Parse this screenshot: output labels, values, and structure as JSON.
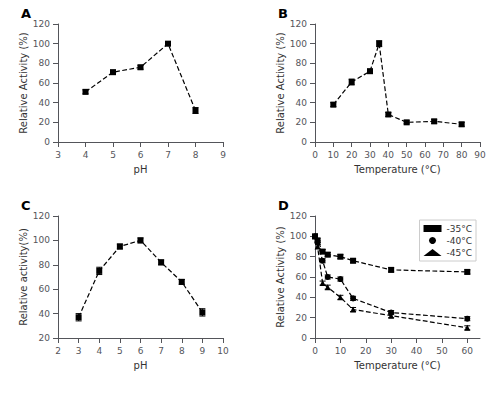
{
  "chart_data": [
    {
      "type": "line",
      "title": "A",
      "xlabel": "pH",
      "ylabel": "Relative Activity (%)",
      "x": [
        4,
        5,
        6,
        7,
        8
      ],
      "series": [
        {
          "color": "black",
          "marker": "square",
          "line_style": "dashed",
          "values": [
            51,
            71,
            76,
            100,
            32
          ],
          "yerr": [
            2,
            2,
            2,
            2,
            3
          ]
        }
      ],
      "xlim": [
        3,
        9
      ],
      "ylim": [
        0,
        120
      ],
      "xticks": [
        3,
        4,
        5,
        6,
        7,
        8,
        9
      ],
      "yticks": [
        0,
        20,
        40,
        60,
        80,
        100,
        120
      ],
      "grid": false
    },
    {
      "type": "line",
      "title": "B",
      "xlabel": "Temperature (°C)",
      "ylabel": "Relative Activity (%)",
      "x": [
        10,
        20,
        30,
        35,
        40,
        50,
        65,
        80
      ],
      "series": [
        {
          "color": "black",
          "marker": "square",
          "line_style": "dashed",
          "values": [
            38,
            61,
            72,
            100,
            28,
            20,
            21,
            18
          ],
          "yerr": [
            2,
            3,
            2,
            3,
            2,
            1.5,
            2,
            2
          ]
        }
      ],
      "xlim": [
        0,
        90
      ],
      "ylim": [
        0,
        120
      ],
      "xticks": [
        0,
        10,
        20,
        30,
        40,
        50,
        60,
        70,
        80,
        90
      ],
      "yticks": [
        0,
        20,
        40,
        60,
        80,
        100,
        120
      ],
      "grid": false
    },
    {
      "type": "line",
      "title": "C",
      "xlabel": "pH",
      "ylabel": "Relative activity(%)",
      "x": [
        3,
        4,
        5,
        6,
        7,
        8,
        9
      ],
      "series": [
        {
          "color": "black",
          "marker": "square",
          "line_style": "dashed",
          "values": [
            37,
            75,
            95,
            100,
            82,
            66,
            41
          ],
          "yerr": [
            3,
            3,
            2,
            2,
            2,
            2,
            3
          ]
        }
      ],
      "xlim": [
        2,
        10
      ],
      "ylim": [
        20,
        120
      ],
      "xticks": [
        2,
        3,
        4,
        5,
        6,
        7,
        8,
        9,
        10
      ],
      "yticks": [
        20,
        40,
        60,
        80,
        100,
        120
      ],
      "grid": false
    },
    {
      "type": "line",
      "title": "D",
      "xlabel": "Temperature (°C)",
      "ylabel": "Relative Activity (%)",
      "x": [
        0,
        1,
        3,
        5,
        10,
        15,
        30,
        60
      ],
      "series": [
        {
          "name": "-35°C",
          "color": "black",
          "marker": "square",
          "line_style": "dashed",
          "values": [
            100,
            96,
            85,
            82,
            80,
            76,
            67,
            65
          ],
          "yerr": [
            2,
            2,
            2,
            2,
            2,
            2,
            2,
            2
          ]
        },
        {
          "name": "-40°C",
          "color": "black",
          "marker": "circle",
          "line_style": "dashed",
          "values": [
            100,
            94,
            76,
            60,
            58,
            39,
            25,
            19
          ],
          "yerr": [
            2,
            2,
            2,
            2,
            2,
            2,
            2,
            2
          ]
        },
        {
          "name": "-45°C",
          "color": "black",
          "marker": "triangle",
          "line_style": "dashed",
          "values": [
            100,
            90,
            54,
            50,
            40,
            28,
            22,
            10
          ],
          "yerr": [
            2,
            2,
            2,
            2,
            2,
            2,
            2,
            2
          ]
        }
      ],
      "xlim": [
        0,
        65
      ],
      "ylim": [
        0,
        120
      ],
      "xticks": [
        0,
        10,
        20,
        30,
        40,
        50,
        60
      ],
      "yticks": [
        0,
        20,
        40,
        60,
        80,
        100,
        120
      ],
      "grid": false,
      "legend": "upper right"
    }
  ]
}
